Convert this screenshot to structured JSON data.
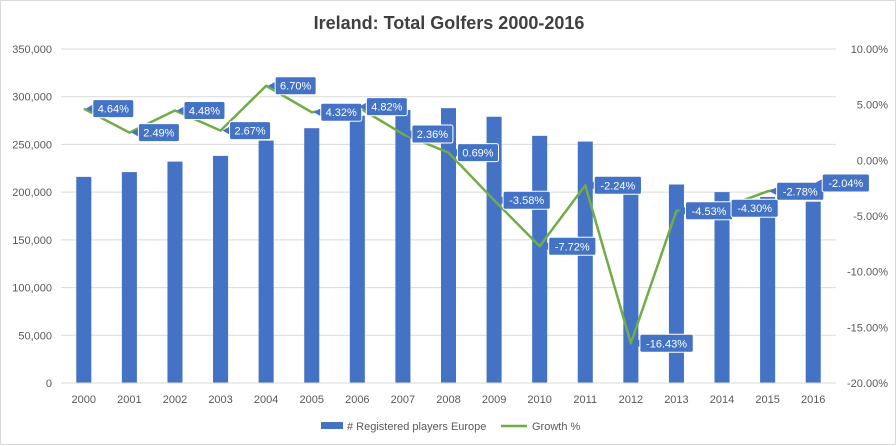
{
  "chart_data": {
    "type": "bar",
    "title": "Ireland: Total Golfers 2000-2016",
    "categories": [
      "2000",
      "2001",
      "2002",
      "2003",
      "2004",
      "2005",
      "2006",
      "2007",
      "2008",
      "2009",
      "2010",
      "2011",
      "2012",
      "2013",
      "2014",
      "2015",
      "2016"
    ],
    "series": [
      {
        "name": "# Registered players Europe",
        "type": "bar",
        "axis": "left",
        "color": "#4472c4",
        "values": [
          216000,
          221000,
          232000,
          238000,
          254000,
          267000,
          280000,
          286000,
          288000,
          279000,
          259000,
          253000,
          212000,
          208000,
          200000,
          195000,
          190000
        ]
      },
      {
        "name": "Growth %",
        "type": "line",
        "axis": "right",
        "color": "#70ad47",
        "values": [
          4.64,
          2.49,
          4.48,
          2.67,
          6.7,
          4.32,
          4.82,
          2.36,
          0.69,
          -3.58,
          -7.72,
          -2.24,
          -16.43,
          -4.53,
          -4.3,
          -2.78,
          -2.04
        ],
        "data_labels": [
          "4.64%",
          "2.49%",
          "4.48%",
          "2.67%",
          "6.70%",
          "4.32%",
          "4.82%",
          "2.36%",
          "0.69%",
          "-3.58%",
          "-7.72%",
          "-2.24%",
          "-16.43%",
          "-4.53%",
          "-4.30%",
          "-2.78%",
          "-2.04%"
        ]
      }
    ],
    "left_axis": {
      "ylim": [
        0,
        350000
      ],
      "tick_labels": [
        "0",
        "50,000",
        "100,000",
        "150,000",
        "200,000",
        "250,000",
        "300,000",
        "350,000"
      ]
    },
    "right_axis": {
      "ylim": [
        -20,
        10
      ],
      "tick_labels": [
        "-20.00%",
        "-15.00%",
        "-10.00%",
        "-5.00%",
        "0.00%",
        "5.00%",
        "10.00%"
      ]
    },
    "grid": true,
    "legend_position": "bottom",
    "label_box_color": "#4472c4"
  }
}
